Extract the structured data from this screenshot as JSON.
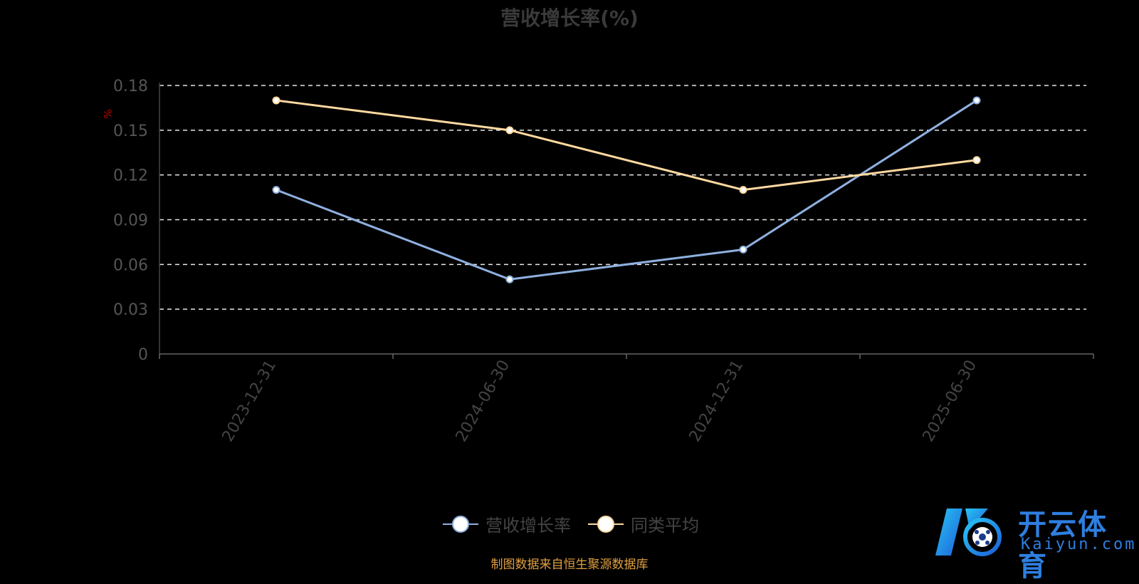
{
  "chart_data": {
    "type": "line",
    "title": "营收增长率(%)",
    "ylabel": "%",
    "xlabel": "",
    "categories": [
      "2023-12-31",
      "2024-06-30",
      "2024-12-31",
      "2025-06-30"
    ],
    "y_ticks": [
      "0",
      "0.03",
      "0.06",
      "0.09",
      "0.12",
      "0.15",
      "0.18"
    ],
    "ylim": [
      0,
      0.18
    ],
    "grid": true,
    "legend_position": "bottom-center",
    "series": [
      {
        "name": "营收增长率",
        "values": [
          0.11,
          0.05,
          0.07,
          0.17
        ],
        "color": "#8fb0e0"
      },
      {
        "name": "同类平均",
        "values": [
          0.17,
          0.15,
          0.11,
          0.13
        ],
        "color": "#ffd9a0"
      }
    ]
  },
  "source": "制图数据来自恒生聚源数据库",
  "watermark": {
    "cn": "开云体育",
    "en": "Kaiyun.com"
  }
}
